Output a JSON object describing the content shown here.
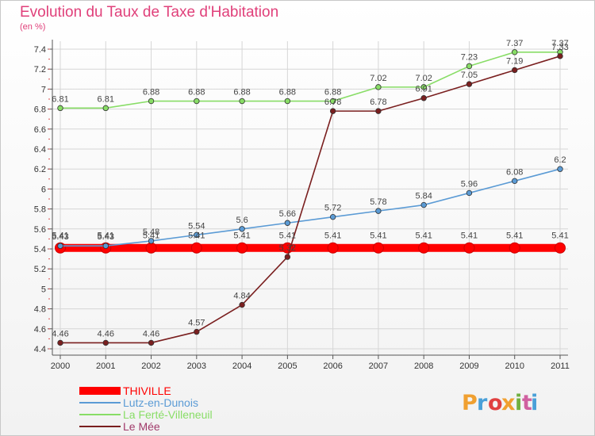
{
  "header": {
    "title": "Evolution du Taux de Taxe d'Habitation",
    "unit": "(en %)"
  },
  "brand": {
    "text": "Proxiti",
    "colors": [
      "#f0a030",
      "#4aa0d8",
      "#e04040",
      "#f0a030",
      "#70b040",
      "#d060a0",
      "#4aa0d8"
    ]
  },
  "chart_data": {
    "type": "line",
    "title": "Evolution du Taux de Taxe d'Habitation",
    "ylabel": "(en %)",
    "xlabel": "",
    "x": [
      "2000",
      "2001",
      "2002",
      "2003",
      "2004",
      "2005",
      "2006",
      "2007",
      "2008",
      "2009",
      "2010",
      "2011"
    ],
    "ylim": [
      4.4,
      7.4
    ],
    "yticks": [
      "4.4",
      "4.6",
      "4.8",
      "5",
      "5.2",
      "5.4",
      "5.6",
      "5.8",
      "6",
      "6.2",
      "6.4",
      "6.6",
      "6.8",
      "7",
      "7.2",
      "7.4"
    ],
    "grid": true,
    "legend_position": "bottom-left",
    "series": [
      {
        "name": "THIVILLE",
        "color": "#ff0000",
        "values": [
          5.41,
          5.41,
          5.41,
          5.41,
          5.41,
          5.41,
          5.41,
          5.41,
          5.41,
          5.41,
          5.41,
          5.41
        ],
        "labels": [
          "5.41",
          "5.41",
          "5.41",
          "5.41",
          "5.41",
          "5.41",
          "5.41",
          "5.41",
          "5.41",
          "5.41",
          "5.41",
          "5.41"
        ]
      },
      {
        "name": "Lutz-en-Dunois",
        "color": "#5b9bd5",
        "values": [
          5.43,
          5.43,
          5.48,
          5.54,
          5.6,
          5.66,
          5.72,
          5.78,
          5.84,
          5.96,
          6.08,
          6.2
        ],
        "labels": [
          "5.43",
          "5.43",
          "5.48",
          "5.54",
          "5.6",
          "5.66",
          "5.72",
          "5.78",
          "5.84",
          "5.96",
          "6.08",
          "6.2"
        ]
      },
      {
        "name": "La Ferté-Villeneuil",
        "color": "#88dd66",
        "values": [
          6.81,
          6.81,
          6.88,
          6.88,
          6.88,
          6.88,
          6.88,
          7.02,
          7.02,
          7.23,
          7.37,
          7.37
        ],
        "labels": [
          "6.81",
          "6.81",
          "6.88",
          "6.88",
          "6.88",
          "6.88",
          "6.88",
          "7.02",
          "7.02",
          "7.23",
          "7.37",
          "7.37"
        ]
      },
      {
        "name": "Le Mée",
        "color": "#7a1f1f",
        "values": [
          4.46,
          4.46,
          4.46,
          4.57,
          4.84,
          5.32,
          6.78,
          6.78,
          6.91,
          7.05,
          7.19,
          7.33
        ],
        "labels": [
          "4.46",
          "4.46",
          "4.46",
          "4.57",
          "4.84",
          "5.32",
          "6.78",
          "6.78",
          "6.91",
          "7.05",
          "7.19",
          "7.33"
        ]
      }
    ]
  }
}
